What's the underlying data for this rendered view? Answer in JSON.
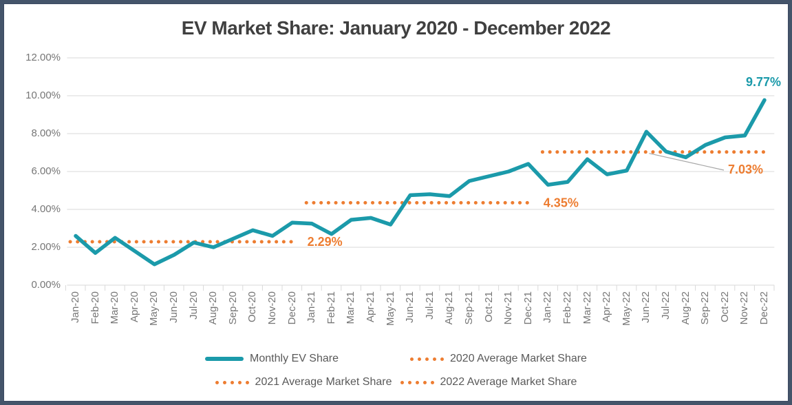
{
  "title": "EV Market Share: January 2020 - December 2022",
  "colors": {
    "teal": "#1B9AAA",
    "orange": "#ED7D31",
    "gridline": "#D9D9D9",
    "axis_tick": "#D9D9D9",
    "axis_text": "#767676",
    "title_text": "#404040",
    "legend_text": "#595959",
    "leader_line": "#A6A6A6",
    "frame_border": "#44546A"
  },
  "chart_data": {
    "type": "line",
    "title": "EV Market Share: January 2020 - December 2022",
    "x": [
      "Jan-20",
      "Feb-20",
      "Mar-20",
      "Apr-20",
      "May-20",
      "Jun-20",
      "Jul-20",
      "Aug-20",
      "Sep-20",
      "Oct-20",
      "Nov-20",
      "Dec-20",
      "Jan-21",
      "Feb-21",
      "Mar-21",
      "Apr-21",
      "May-21",
      "Jun-21",
      "Jul-21",
      "Aug-21",
      "Sep-21",
      "Oct-21",
      "Nov-21",
      "Dec-21",
      "Jan-22",
      "Feb-22",
      "Mar-22",
      "Apr-22",
      "May-22",
      "Jun-22",
      "Jul-22",
      "Aug-22",
      "Sep-22",
      "Oct-22",
      "Nov-22",
      "Dec-22"
    ],
    "series": [
      {
        "name": "Monthly EV Share",
        "style": "solid",
        "color": "#1B9AAA",
        "values": [
          2.6,
          1.7,
          2.5,
          1.8,
          1.1,
          1.6,
          2.25,
          2.0,
          2.45,
          2.9,
          2.6,
          3.3,
          3.25,
          2.7,
          3.45,
          3.55,
          3.2,
          4.75,
          4.8,
          4.7,
          5.5,
          5.75,
          6.0,
          6.4,
          5.3,
          5.45,
          6.65,
          5.85,
          6.05,
          8.1,
          7.05,
          6.75,
          7.4,
          7.8,
          7.9,
          9.77
        ]
      },
      {
        "name": "2020 Average Market Share",
        "style": "dotted",
        "color": "#ED7D31",
        "value": 2.29,
        "start_index": 0,
        "end_index": 11
      },
      {
        "name": "2021 Average Market Share",
        "style": "dotted",
        "color": "#ED7D31",
        "value": 4.35,
        "start_index": 12,
        "end_index": 23
      },
      {
        "name": "2022 Average Market Share",
        "style": "dotted",
        "color": "#ED7D31",
        "value": 7.03,
        "start_index": 24,
        "end_index": 35
      }
    ],
    "annotations": [
      {
        "text": "2.29%",
        "color": "#ED7D31"
      },
      {
        "text": "4.35%",
        "color": "#ED7D31"
      },
      {
        "text": "7.03%",
        "color": "#ED7D31",
        "leader": true
      },
      {
        "text": "9.77%",
        "color": "#1B9AAA"
      }
    ],
    "y_ticks": [
      "12.00%",
      "10.00%",
      "8.00%",
      "6.00%",
      "4.00%",
      "2.00%",
      "0.00%"
    ],
    "ylim": [
      0,
      12
    ],
    "grid": true,
    "legend_position": "bottom"
  },
  "legend": {
    "items": [
      {
        "label": "Monthly EV Share"
      },
      {
        "label": "2020 Average Market Share"
      },
      {
        "label": "2021 Average Market Share"
      },
      {
        "label": "2022 Average Market Share"
      }
    ]
  }
}
